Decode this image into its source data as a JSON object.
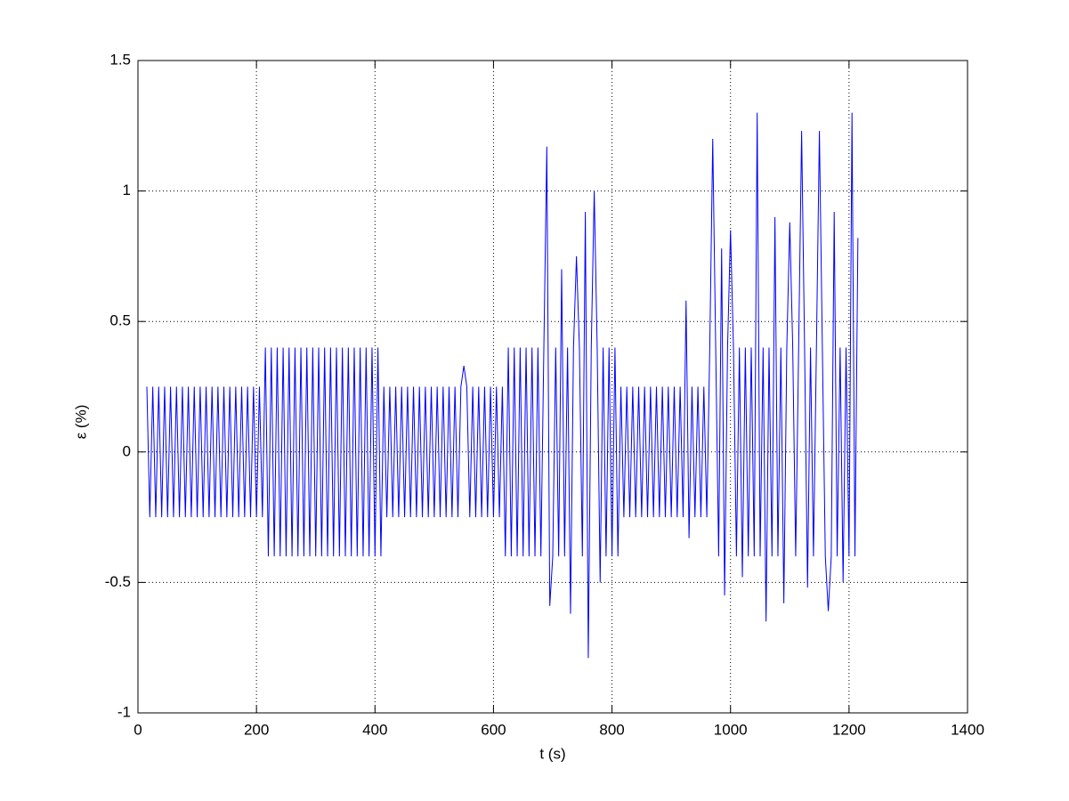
{
  "chart_data": {
    "type": "line",
    "xlabel": "t (s)",
    "ylabel": "ε (%)",
    "xlim": [
      0,
      1400
    ],
    "xticks": [
      0,
      200,
      400,
      600,
      800,
      1000,
      1200,
      1400
    ],
    "ylim": [
      -1,
      1.5
    ],
    "yticks": [
      -1,
      -0.5,
      0,
      0.5,
      1,
      1.5
    ],
    "grid": true,
    "x": [
      15,
      20,
      25,
      30,
      35,
      40,
      45,
      50,
      55,
      60,
      65,
      70,
      75,
      80,
      85,
      90,
      95,
      100,
      105,
      110,
      115,
      120,
      125,
      130,
      135,
      140,
      145,
      150,
      155,
      160,
      165,
      170,
      175,
      180,
      185,
      190,
      195,
      200,
      205,
      210,
      215,
      220,
      225,
      230,
      235,
      240,
      245,
      250,
      255,
      260,
      265,
      270,
      275,
      280,
      285,
      290,
      295,
      300,
      305,
      310,
      315,
      320,
      325,
      330,
      335,
      340,
      345,
      350,
      355,
      360,
      365,
      370,
      375,
      380,
      385,
      390,
      395,
      400,
      405,
      410,
      415,
      420,
      425,
      430,
      435,
      440,
      445,
      450,
      455,
      460,
      465,
      470,
      475,
      480,
      485,
      490,
      495,
      500,
      505,
      510,
      515,
      520,
      525,
      530,
      535,
      540,
      545,
      550,
      555,
      560,
      565,
      570,
      575,
      580,
      585,
      590,
      595,
      600,
      605,
      610,
      615,
      620,
      625,
      630,
      635,
      640,
      645,
      650,
      655,
      660,
      665,
      670,
      675,
      680,
      685,
      690,
      695,
      700,
      705,
      710,
      715,
      720,
      725,
      730,
      735,
      740,
      745,
      750,
      755,
      760,
      765,
      770,
      775,
      780,
      785,
      790,
      795,
      800,
      805,
      810,
      815,
      820,
      825,
      830,
      835,
      840,
      845,
      850,
      855,
      860,
      865,
      870,
      875,
      880,
      885,
      890,
      895,
      900,
      905,
      910,
      915,
      920,
      925,
      930,
      935,
      940,
      945,
      950,
      955,
      960,
      965,
      970,
      975,
      980,
      985,
      990,
      995,
      1000,
      1005,
      1010,
      1015,
      1020,
      1025,
      1030,
      1035,
      1040,
      1045,
      1050,
      1055,
      1060,
      1065,
      1070,
      1075,
      1080,
      1085,
      1090,
      1095,
      1100,
      1105,
      1110,
      1115,
      1120,
      1125,
      1130,
      1135,
      1140,
      1145,
      1150,
      1155,
      1160,
      1165,
      1170,
      1175,
      1180,
      1185,
      1190,
      1195,
      1200,
      1205,
      1210,
      1215
    ],
    "series": [
      {
        "color": "#0000ff",
        "values": [
          0.25,
          -0.25,
          0.25,
          -0.25,
          0.25,
          -0.25,
          0.25,
          -0.25,
          0.25,
          -0.25,
          0.25,
          -0.25,
          0.25,
          -0.25,
          0.25,
          -0.25,
          0.25,
          -0.25,
          0.25,
          -0.25,
          0.25,
          -0.25,
          0.25,
          -0.25,
          0.25,
          -0.25,
          0.25,
          -0.25,
          0.25,
          -0.25,
          0.25,
          -0.25,
          0.25,
          -0.25,
          0.25,
          -0.25,
          0.25,
          -0.25,
          0.25,
          -0.25,
          0.4,
          -0.4,
          0.4,
          -0.4,
          0.4,
          -0.4,
          0.4,
          -0.4,
          0.4,
          -0.4,
          0.4,
          -0.4,
          0.4,
          -0.4,
          0.4,
          -0.4,
          0.4,
          -0.4,
          0.4,
          -0.4,
          0.4,
          -0.4,
          0.4,
          -0.4,
          0.4,
          -0.4,
          0.4,
          -0.4,
          0.4,
          -0.4,
          0.4,
          -0.4,
          0.4,
          -0.4,
          0.4,
          -0.4,
          0.4,
          -0.4,
          0.4,
          -0.4,
          0.25,
          -0.25,
          0.25,
          -0.25,
          0.25,
          -0.25,
          0.25,
          -0.25,
          0.25,
          -0.25,
          0.25,
          -0.25,
          0.25,
          -0.25,
          0.25,
          -0.25,
          0.25,
          -0.25,
          0.25,
          -0.25,
          0.25,
          -0.25,
          0.25,
          -0.25,
          0.25,
          -0.25,
          0.25,
          0.33,
          0.25,
          -0.25,
          0.25,
          -0.25,
          0.25,
          -0.25,
          0.25,
          -0.25,
          0.25,
          -0.25,
          0.25,
          -0.25,
          0.25,
          -0.4,
          0.4,
          -0.4,
          0.4,
          -0.4,
          0.4,
          -0.4,
          0.4,
          -0.4,
          0.4,
          -0.4,
          0.4,
          -0.4,
          0.4,
          1.17,
          -0.59,
          -0.4,
          0.4,
          -0.4,
          0.7,
          -0.4,
          0.4,
          -0.62,
          0.4,
          0.75,
          0.4,
          -0.4,
          0.92,
          -0.79,
          0.4,
          1.0,
          0.4,
          -0.5,
          0.4,
          -0.4,
          0.4,
          -0.4,
          0.4,
          -0.4,
          0.25,
          -0.25,
          0.25,
          -0.25,
          0.25,
          -0.25,
          0.25,
          -0.25,
          0.25,
          -0.25,
          0.25,
          -0.25,
          0.25,
          -0.25,
          0.25,
          -0.25,
          0.25,
          -0.25,
          0.25,
          -0.25,
          0.25,
          -0.25,
          0.58,
          -0.33,
          0.25,
          -0.25,
          0.25,
          -0.25,
          0.25,
          -0.25,
          0.4,
          1.2,
          0.4,
          -0.4,
          0.78,
          -0.55,
          0.4,
          0.85,
          0.4,
          -0.4,
          0.4,
          -0.48,
          0.4,
          -0.4,
          0.4,
          -0.4,
          1.3,
          -0.4,
          0.4,
          -0.65,
          0.4,
          -0.4,
          0.9,
          -0.4,
          0.4,
          -0.58,
          0.4,
          0.88,
          0.4,
          -0.4,
          0.4,
          1.23,
          0.4,
          -0.52,
          0.4,
          -0.4,
          0.4,
          1.23,
          0.4,
          -0.4,
          -0.61,
          -0.4,
          0.92,
          -0.4,
          0.4,
          -0.5,
          0.4,
          -0.4,
          1.3,
          -0.4,
          0.82
        ]
      }
    ]
  }
}
